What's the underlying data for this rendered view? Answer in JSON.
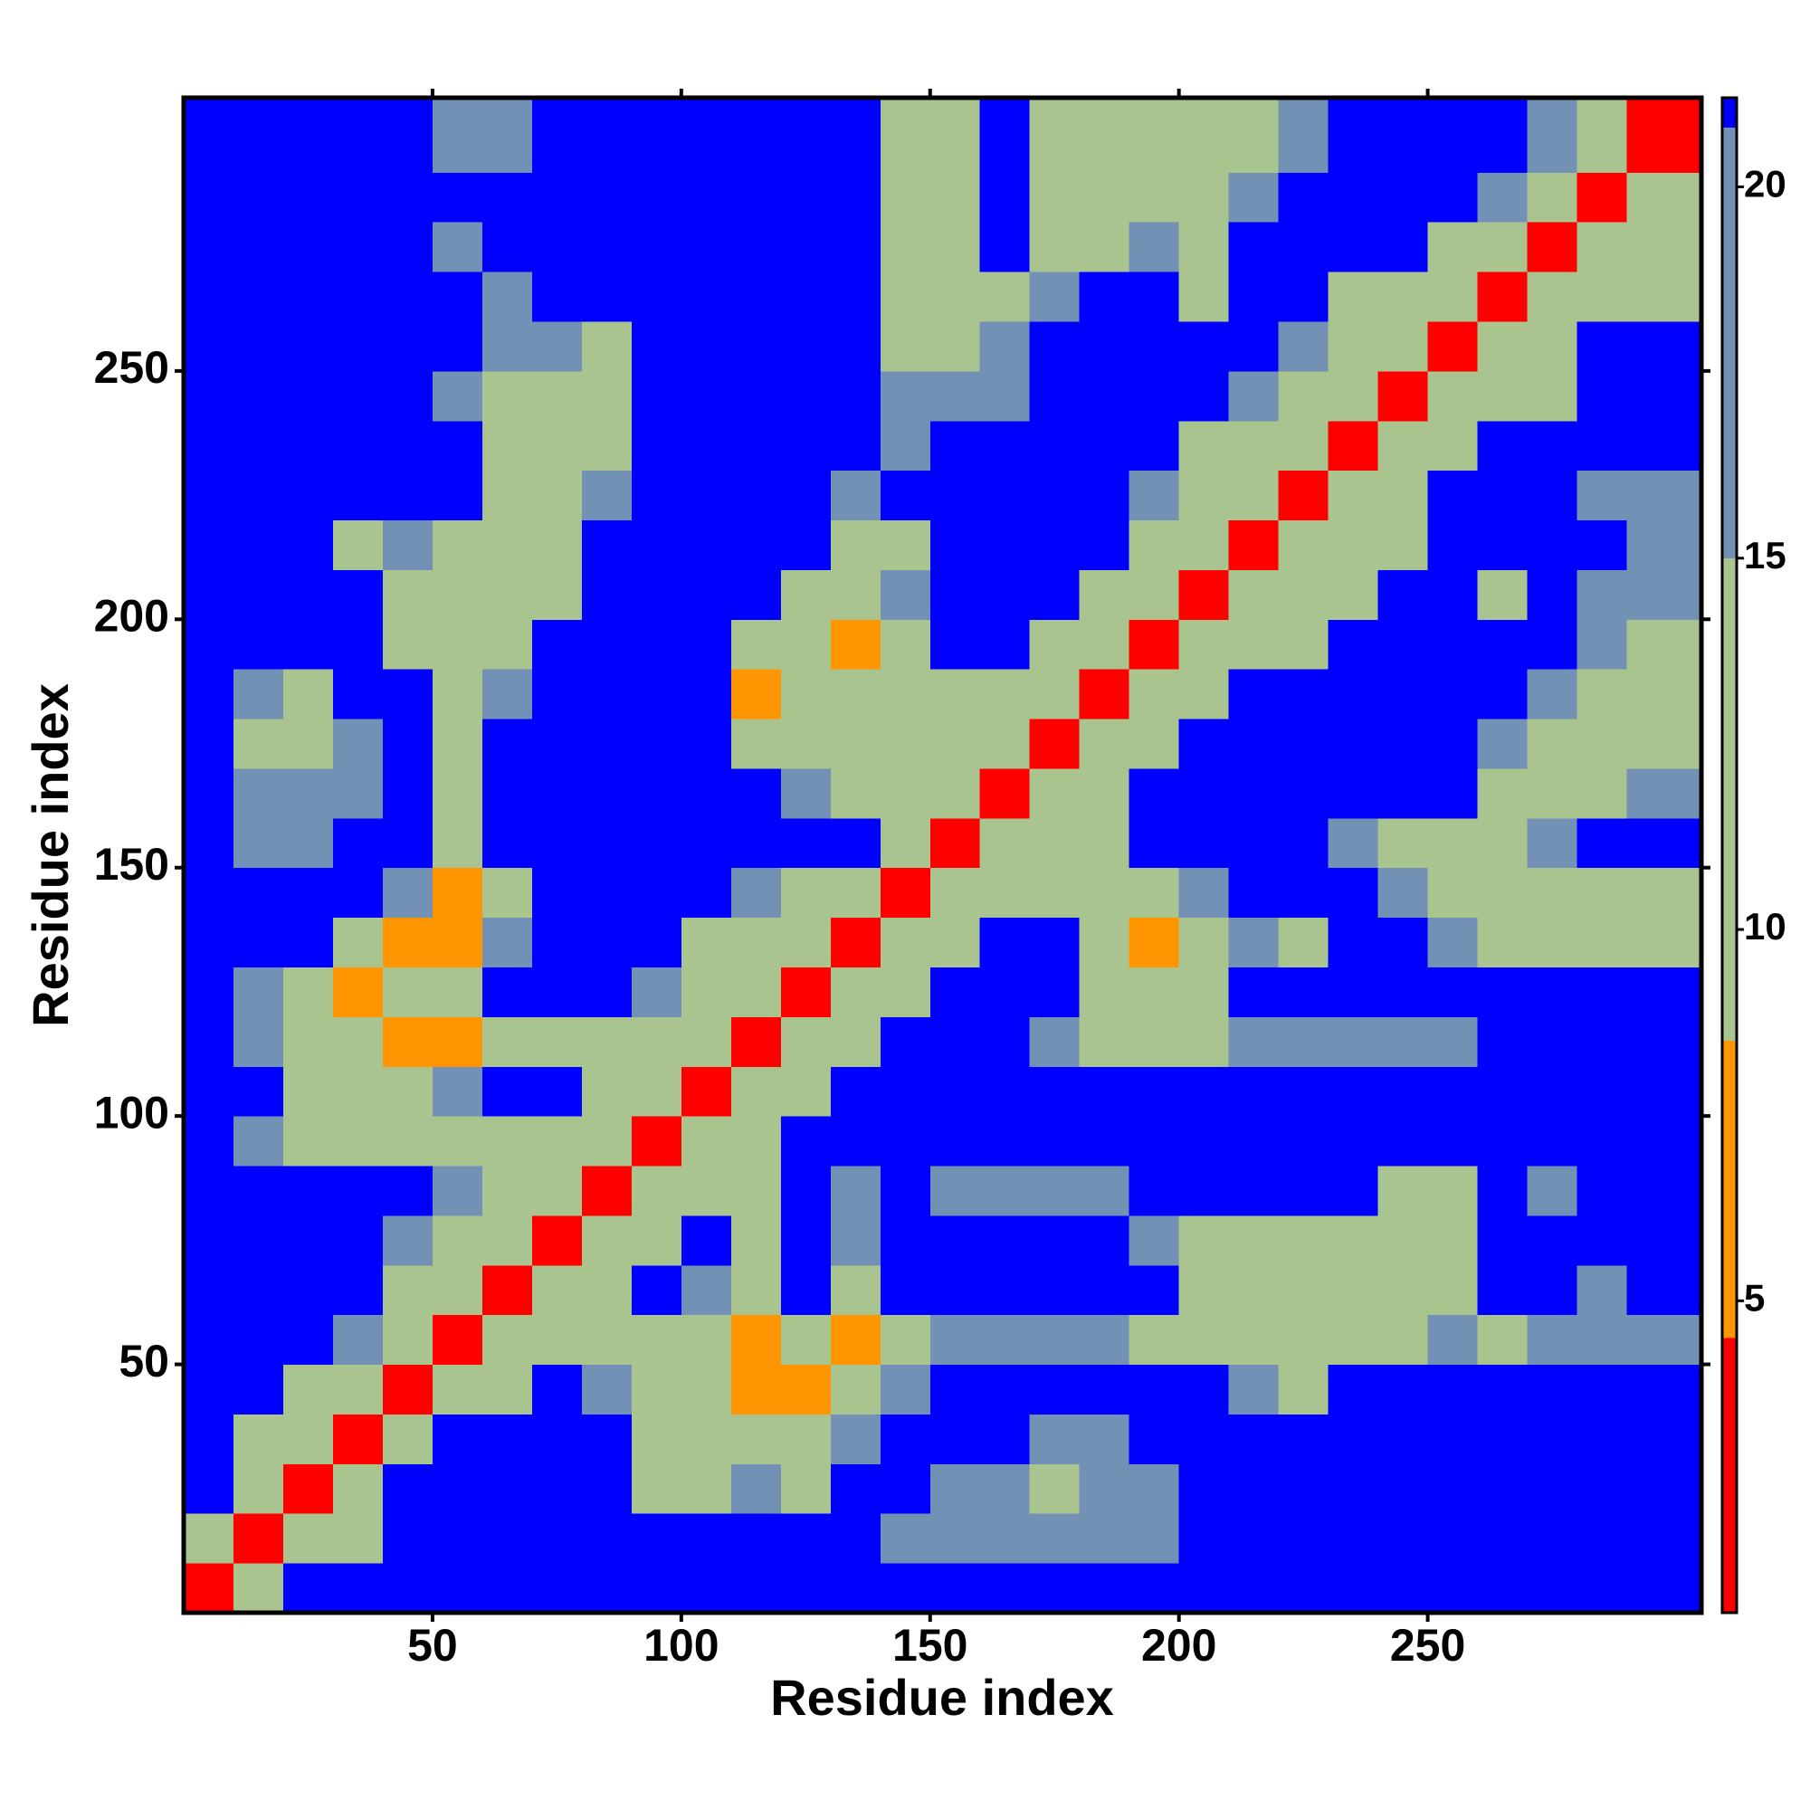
{
  "chart_data": {
    "type": "heatmap",
    "xlabel": "Residue index",
    "ylabel": "Residue index",
    "bins": [
      0,
      10,
      20,
      30,
      40,
      50,
      60,
      70,
      80,
      90,
      100,
      110,
      120,
      130,
      140,
      150,
      160,
      170,
      180,
      190,
      200,
      210,
      220,
      230,
      240,
      250,
      260,
      270,
      280,
      290,
      305
    ],
    "xlim": [
      0,
      305
    ],
    "ylim": [
      0,
      305
    ],
    "xticks": [
      50,
      100,
      150,
      200,
      250
    ],
    "yticks": [
      50,
      100,
      150,
      200,
      250
    ],
    "zlim": [
      0.8,
      21.2
    ],
    "zticks": [
      5,
      10,
      15,
      20
    ],
    "colorscale": [
      [
        0.8,
        "#ff0000"
      ],
      [
        4.5,
        "#ff9500"
      ],
      [
        8.5,
        "#a9c48f"
      ],
      [
        15,
        "#7391b5"
      ],
      [
        20.8,
        "#0000ff"
      ]
    ],
    "z": [
      [
        3,
        9,
        22,
        22,
        22,
        22,
        22,
        22,
        22,
        22,
        22,
        22,
        22,
        22,
        22,
        22,
        22,
        22,
        22,
        22,
        22,
        22,
        22,
        22,
        22,
        22,
        22,
        22,
        22,
        22
      ],
      [
        9,
        3,
        9,
        12,
        22,
        22,
        22,
        22,
        22,
        22,
        22,
        22,
        22,
        22,
        17,
        17,
        17,
        17,
        17,
        17,
        22,
        22,
        22,
        22,
        22,
        22,
        22,
        22,
        22,
        22
      ],
      [
        22,
        9,
        3,
        9,
        22,
        22,
        22,
        22,
        22,
        12,
        12,
        17,
        12,
        22,
        22,
        17,
        17,
        12,
        17,
        17,
        22,
        22,
        22,
        22,
        22,
        22,
        22,
        22,
        22,
        22
      ],
      [
        22,
        12,
        9,
        3,
        9,
        22,
        22,
        22,
        22,
        12,
        12,
        12,
        12,
        17,
        22,
        22,
        22,
        17,
        17,
        22,
        22,
        22,
        22,
        22,
        22,
        22,
        22,
        22,
        22,
        22
      ],
      [
        22,
        22,
        12,
        9,
        3,
        9,
        12,
        22,
        17,
        12,
        12,
        7,
        7,
        12,
        17,
        22,
        22,
        22,
        22,
        22,
        22,
        17,
        12,
        22,
        22,
        22,
        22,
        22,
        22,
        22
      ],
      [
        22,
        22,
        22,
        17,
        9,
        3,
        9,
        12,
        12,
        12,
        12,
        7,
        12,
        7,
        12,
        17,
        17,
        17,
        17,
        12,
        12,
        12,
        12,
        12,
        12,
        17,
        12,
        17,
        17,
        17
      ],
      [
        22,
        22,
        22,
        22,
        12,
        9,
        3,
        9,
        12,
        22,
        17,
        12,
        22,
        12,
        22,
        22,
        22,
        22,
        22,
        22,
        12,
        12,
        12,
        12,
        12,
        12,
        22,
        22,
        17,
        22
      ],
      [
        22,
        22,
        22,
        22,
        17,
        12,
        9,
        3,
        9,
        12,
        22,
        12,
        22,
        17,
        22,
        22,
        22,
        22,
        22,
        17,
        12,
        12,
        12,
        12,
        12,
        12,
        22,
        22,
        22,
        22
      ],
      [
        22,
        22,
        22,
        22,
        22,
        17,
        12,
        9,
        3,
        9,
        12,
        12,
        22,
        17,
        22,
        17,
        17,
        17,
        17,
        22,
        22,
        22,
        22,
        22,
        12,
        12,
        22,
        17,
        22,
        22
      ],
      [
        22,
        17,
        12,
        12,
        12,
        12,
        12,
        12,
        9,
        3,
        9,
        12,
        22,
        22,
        22,
        22,
        22,
        22,
        22,
        22,
        22,
        22,
        22,
        22,
        22,
        22,
        22,
        22,
        22,
        22
      ],
      [
        22,
        22,
        12,
        12,
        12,
        17,
        22,
        22,
        12,
        9,
        3,
        9,
        12,
        22,
        22,
        22,
        22,
        22,
        22,
        22,
        22,
        22,
        22,
        22,
        22,
        22,
        22,
        22,
        22,
        22
      ],
      [
        22,
        17,
        12,
        12,
        7,
        7,
        12,
        12,
        12,
        12,
        12,
        3,
        9,
        12,
        22,
        22,
        22,
        17,
        12,
        12,
        12,
        17,
        17,
        17,
        17,
        17,
        22,
        22,
        22,
        22
      ],
      [
        22,
        17,
        12,
        7,
        12,
        12,
        22,
        22,
        22,
        17,
        12,
        9,
        3,
        9,
        12,
        22,
        22,
        22,
        12,
        12,
        12,
        22,
        22,
        22,
        22,
        22,
        22,
        22,
        22,
        22
      ],
      [
        22,
        22,
        22,
        12,
        7,
        7,
        17,
        22,
        22,
        22,
        12,
        12,
        9,
        3,
        9,
        12,
        22,
        22,
        12,
        7,
        12,
        17,
        12,
        22,
        22,
        17,
        12,
        12,
        12,
        12
      ],
      [
        22,
        22,
        22,
        22,
        17,
        7,
        12,
        22,
        22,
        22,
        22,
        17,
        12,
        9,
        3,
        9,
        12,
        12,
        12,
        12,
        17,
        22,
        22,
        22,
        17,
        12,
        12,
        12,
        12,
        12
      ],
      [
        22,
        17,
        17,
        22,
        22,
        12,
        22,
        22,
        22,
        22,
        22,
        22,
        22,
        22,
        9,
        3,
        9,
        12,
        12,
        22,
        22,
        22,
        22,
        17,
        12,
        12,
        12,
        17,
        22,
        22
      ],
      [
        22,
        17,
        17,
        17,
        22,
        12,
        22,
        22,
        22,
        22,
        22,
        22,
        17,
        12,
        12,
        9,
        3,
        9,
        12,
        22,
        22,
        22,
        22,
        22,
        22,
        22,
        12,
        12,
        12,
        17
      ],
      [
        22,
        12,
        12,
        17,
        22,
        12,
        22,
        22,
        22,
        22,
        22,
        12,
        12,
        12,
        12,
        12,
        9,
        3,
        9,
        12,
        22,
        22,
        22,
        22,
        22,
        22,
        17,
        12,
        12,
        12
      ],
      [
        22,
        17,
        12,
        22,
        22,
        12,
        17,
        22,
        22,
        22,
        22,
        7,
        12,
        12,
        12,
        12,
        12,
        9,
        3,
        9,
        12,
        22,
        22,
        22,
        22,
        22,
        22,
        17,
        12,
        12
      ],
      [
        22,
        22,
        22,
        22,
        12,
        12,
        12,
        22,
        22,
        22,
        22,
        12,
        12,
        7,
        12,
        22,
        22,
        12,
        9,
        3,
        9,
        12,
        12,
        22,
        22,
        22,
        22,
        22,
        17,
        12
      ],
      [
        22,
        22,
        22,
        22,
        12,
        12,
        12,
        12,
        22,
        22,
        22,
        22,
        12,
        12,
        17,
        22,
        22,
        22,
        12,
        9,
        3,
        9,
        12,
        12,
        22,
        22,
        12,
        22,
        17,
        17
      ],
      [
        22,
        22,
        22,
        12,
        17,
        12,
        12,
        12,
        22,
        22,
        22,
        22,
        22,
        12,
        12,
        22,
        22,
        22,
        22,
        12,
        9,
        3,
        9,
        12,
        12,
        22,
        22,
        22,
        22,
        17
      ],
      [
        22,
        22,
        22,
        22,
        22,
        22,
        12,
        12,
        17,
        22,
        22,
        22,
        22,
        17,
        22,
        22,
        22,
        22,
        22,
        17,
        12,
        9,
        3,
        9,
        12,
        22,
        22,
        22,
        17,
        17
      ],
      [
        22,
        22,
        22,
        22,
        22,
        22,
        12,
        12,
        12,
        22,
        22,
        22,
        22,
        22,
        17,
        22,
        22,
        22,
        22,
        22,
        12,
        12,
        9,
        3,
        9,
        12,
        22,
        22,
        22,
        22
      ],
      [
        22,
        22,
        22,
        22,
        22,
        17,
        12,
        12,
        12,
        22,
        22,
        22,
        22,
        22,
        17,
        17,
        17,
        22,
        22,
        22,
        22,
        17,
        12,
        9,
        3,
        9,
        12,
        12,
        22,
        22
      ],
      [
        22,
        22,
        22,
        22,
        22,
        22,
        17,
        17,
        12,
        22,
        22,
        22,
        22,
        22,
        12,
        12,
        17,
        22,
        22,
        22,
        22,
        22,
        17,
        12,
        9,
        3,
        9,
        12,
        22,
        22
      ],
      [
        22,
        22,
        22,
        22,
        22,
        22,
        17,
        22,
        22,
        22,
        22,
        22,
        22,
        22,
        12,
        12,
        12,
        17,
        22,
        22,
        12,
        22,
        22,
        12,
        12,
        9,
        3,
        9,
        12,
        12
      ],
      [
        22,
        22,
        22,
        22,
        22,
        17,
        22,
        22,
        22,
        22,
        22,
        22,
        22,
        22,
        12,
        12,
        22,
        12,
        12,
        17,
        12,
        22,
        22,
        22,
        22,
        12,
        9,
        3,
        9,
        12
      ],
      [
        22,
        22,
        22,
        22,
        22,
        22,
        22,
        22,
        22,
        22,
        22,
        22,
        22,
        22,
        12,
        12,
        22,
        12,
        12,
        12,
        12,
        17,
        22,
        22,
        22,
        22,
        17,
        9,
        3,
        9
      ],
      [
        22,
        22,
        22,
        22,
        22,
        17,
        17,
        22,
        22,
        22,
        22,
        22,
        22,
        22,
        12,
        12,
        22,
        12,
        12,
        12,
        12,
        12,
        17,
        22,
        22,
        22,
        22,
        17,
        9,
        3
      ]
    ]
  }
}
